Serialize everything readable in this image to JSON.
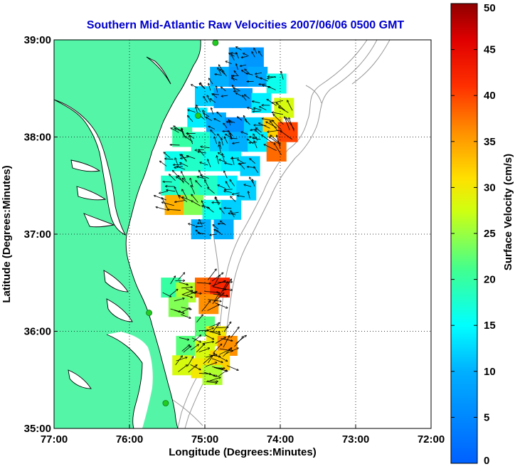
{
  "title": "Southern Mid-Atlantic Raw Velocities 2007/06/06 0500 GMT",
  "map": {
    "xlabel": "Longitude (Degrees:Minutes)",
    "ylabel": "Latitude (Degrees:Minutes)",
    "lon_range": [
      -77,
      -72
    ],
    "lat_range": [
      35,
      39
    ],
    "x_ticks": [
      {
        "value": -77,
        "label": "77:00"
      },
      {
        "value": -76,
        "label": "76:00"
      },
      {
        "value": -75,
        "label": "75:00"
      },
      {
        "value": -74,
        "label": "74:00"
      },
      {
        "value": -73,
        "label": "73:00"
      },
      {
        "value": -72,
        "label": "72:00"
      }
    ],
    "y_ticks": [
      {
        "value": 39,
        "label": "39:00"
      },
      {
        "value": 38,
        "label": "38:00"
      },
      {
        "value": 37,
        "label": "37:00"
      },
      {
        "value": 36,
        "label": "36:00"
      },
      {
        "value": 35,
        "label": "35:00"
      }
    ],
    "grid": "dotted",
    "land_color": "#55f5a8",
    "bathymetry_color": "#999999",
    "station_color": "#22cc22",
    "stations": [
      {
        "lon": -74.86,
        "lat": 38.97
      },
      {
        "lon": -75.09,
        "lat": 38.22
      },
      {
        "lon": -75.74,
        "lat": 36.19
      },
      {
        "lon": -75.52,
        "lat": 35.26
      }
    ]
  },
  "colorbar": {
    "label": "Surface Velocity (cm/s)",
    "min": 0,
    "max": 50,
    "ticks": [
      {
        "value": 0,
        "label": "0"
      },
      {
        "value": 5,
        "label": "5"
      },
      {
        "value": 10,
        "label": "10"
      },
      {
        "value": 15,
        "label": "15"
      },
      {
        "value": 20,
        "label": "20"
      },
      {
        "value": 25,
        "label": "25"
      },
      {
        "value": 30,
        "label": "30"
      },
      {
        "value": 35,
        "label": "35"
      },
      {
        "value": 40,
        "label": "40"
      },
      {
        "value": 45,
        "label": "45"
      },
      {
        "value": 50,
        "label": "50"
      }
    ],
    "colormap": "jet"
  },
  "chart_data": {
    "type": "heatmap",
    "title": "Southern Mid-Atlantic Raw Velocities 2007/06/06 0500 GMT",
    "xlabel": "Longitude (Degrees:Minutes)",
    "ylabel": "Latitude (Degrees:Minutes)",
    "xlim": [
      -77,
      -72
    ],
    "ylim": [
      35,
      39
    ],
    "value_label": "Surface Velocity (cm/s)",
    "value_range": [
      0,
      50
    ],
    "fields": [
      {
        "region": "north",
        "points": [
          [
            -74.55,
            38.82,
            8
          ],
          [
            -74.35,
            38.82,
            7
          ],
          [
            -74.8,
            38.62,
            10
          ],
          [
            -74.55,
            38.62,
            7
          ],
          [
            -74.3,
            38.62,
            9
          ],
          [
            -74.05,
            38.55,
            16
          ],
          [
            -75.0,
            38.42,
            12
          ],
          [
            -74.75,
            38.4,
            8
          ],
          [
            -74.5,
            38.4,
            8
          ],
          [
            -74.25,
            38.35,
            14
          ],
          [
            -73.95,
            38.3,
            28
          ],
          [
            -75.1,
            38.2,
            14
          ],
          [
            -74.85,
            38.15,
            10
          ],
          [
            -74.6,
            38.1,
            6
          ],
          [
            -74.35,
            38.1,
            12
          ],
          [
            -74.1,
            38.1,
            32
          ],
          [
            -73.9,
            38.05,
            40
          ],
          [
            -75.3,
            38.0,
            20
          ],
          [
            -75.05,
            37.95,
            18
          ],
          [
            -74.8,
            37.95,
            12
          ],
          [
            -74.55,
            37.95,
            10
          ],
          [
            -74.3,
            37.95,
            14
          ],
          [
            -74.05,
            37.85,
            38
          ],
          [
            -75.4,
            37.75,
            16
          ],
          [
            -75.15,
            37.75,
            18
          ],
          [
            -74.9,
            37.75,
            16
          ],
          [
            -74.65,
            37.75,
            14
          ],
          [
            -74.4,
            37.7,
            12
          ],
          [
            -75.45,
            37.5,
            18
          ],
          [
            -75.2,
            37.5,
            20
          ],
          [
            -74.95,
            37.5,
            18
          ],
          [
            -74.7,
            37.5,
            14
          ],
          [
            -74.45,
            37.45,
            12
          ],
          [
            -75.4,
            37.3,
            34
          ],
          [
            -75.15,
            37.3,
            24
          ],
          [
            -74.9,
            37.25,
            16
          ],
          [
            -74.65,
            37.25,
            12
          ],
          [
            -75.05,
            37.05,
            10
          ],
          [
            -74.75,
            37.05,
            10
          ]
        ]
      },
      {
        "region": "middle",
        "points": [
          [
            -75.45,
            36.45,
            20
          ],
          [
            -75.25,
            36.4,
            26
          ],
          [
            -75.0,
            36.45,
            38
          ],
          [
            -74.8,
            36.45,
            42
          ],
          [
            -75.35,
            36.25,
            24
          ],
          [
            -74.95,
            36.28,
            36
          ]
        ]
      },
      {
        "region": "south",
        "points": [
          [
            -75.0,
            36.05,
            22
          ],
          [
            -74.85,
            35.95,
            30
          ],
          [
            -74.7,
            35.85,
            36
          ],
          [
            -75.25,
            35.85,
            22
          ],
          [
            -75.0,
            35.8,
            28
          ],
          [
            -74.8,
            35.7,
            32
          ],
          [
            -75.3,
            35.65,
            28
          ],
          [
            -75.05,
            35.62,
            30
          ],
          [
            -74.9,
            35.55,
            26
          ]
        ]
      }
    ]
  }
}
